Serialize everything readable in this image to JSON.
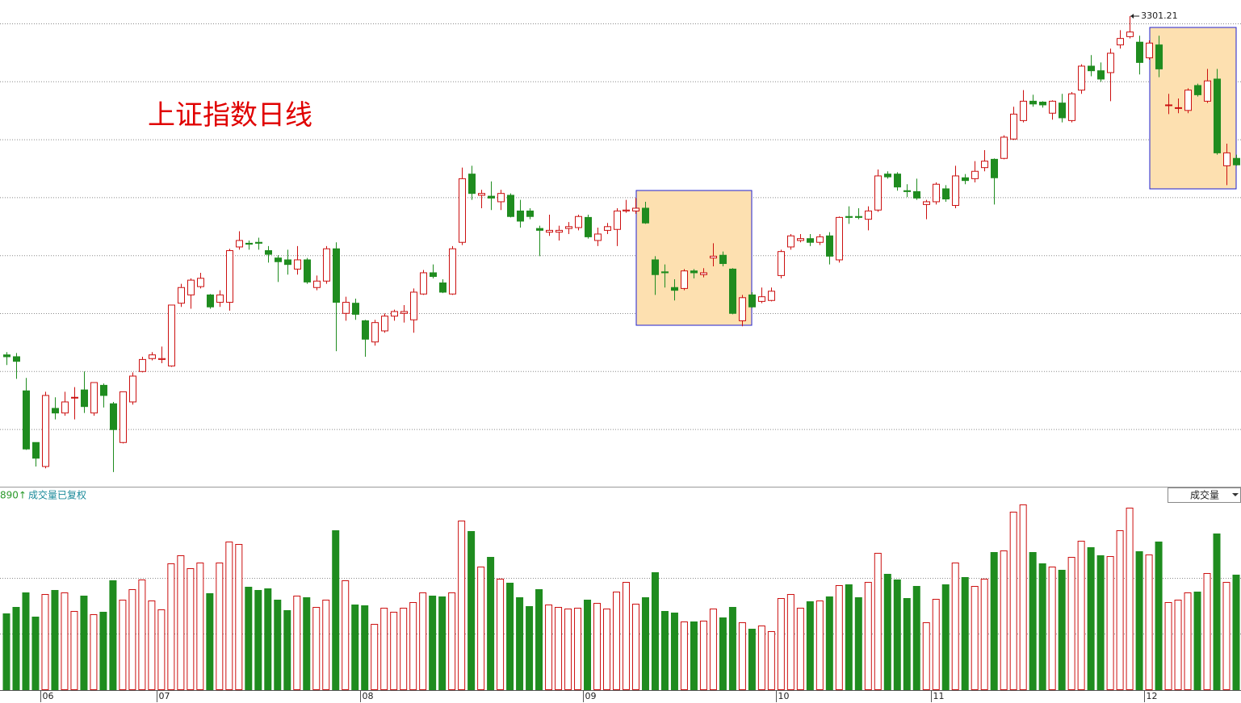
{
  "chart_data": {
    "type": "candlestick",
    "title": "上证指数日线",
    "categories": [
      null,
      null,
      null,
      null,
      "06",
      null,
      null,
      null,
      null,
      null,
      null,
      null,
      null,
      null,
      null,
      null,
      "07",
      null,
      null,
      null,
      null,
      null,
      null,
      null,
      null,
      null,
      null,
      null,
      null,
      null,
      null,
      null,
      null,
      null,
      null,
      null,
      null,
      "08",
      null,
      null,
      null,
      null,
      null,
      null,
      null,
      null,
      null,
      null,
      null,
      null,
      null,
      null,
      null,
      null,
      null,
      null,
      null,
      null,
      null,
      null,
      "09",
      null,
      null,
      null,
      null,
      null,
      null,
      null,
      null,
      null,
      null,
      null,
      null,
      null,
      null,
      null,
      null,
      null,
      null,
      null,
      "10",
      null,
      null,
      null,
      null,
      null,
      null,
      null,
      null,
      null,
      null,
      null,
      null,
      null,
      null,
      null,
      "11",
      null,
      null,
      null,
      null,
      null,
      null,
      null,
      null,
      null,
      null,
      null,
      null,
      null,
      null,
      null,
      null,
      null,
      null,
      null,
      null,
      null,
      "12",
      null,
      null,
      null,
      null,
      null,
      null,
      null,
      null,
      null
    ],
    "open": [
      2934,
      2932,
      2895,
      2839,
      2813,
      2876,
      2871,
      2888,
      2896,
      2871,
      2901,
      2881,
      2839,
      2883,
      2916,
      2930,
      2929,
      2922,
      2990,
      2999,
      3008,
      2999,
      2991,
      2991,
      3051,
      3055,
      3056,
      3047,
      3039,
      3037,
      3027,
      3037,
      3007,
      3014,
      3049,
      2979,
      2990,
      2971,
      2948,
      2960,
      2976,
      2979,
      2972,
      3000,
      3023,
      3012,
      3000,
      3056,
      3130,
      3107,
      3106,
      3100,
      3107,
      3090,
      3090,
      3071,
      3067,
      3067,
      3071,
      3072,
      3083,
      3058,
      3069,
      3070,
      3090,
      3090,
      3093,
      3037,
      3024,
      3007,
      3006,
      3025,
      3021,
      3039,
      3042,
      3027,
      2971,
      2999,
      2992,
      2993,
      3020,
      3051,
      3058,
      3060,
      3056,
      3063,
      3037,
      3084,
      3084,
      3081,
      3091,
      3130,
      3130,
      3112,
      3111,
      3097,
      3100,
      3114,
      3096,
      3126,
      3125,
      3137,
      3146,
      3147,
      3168,
      3188,
      3209,
      3208,
      3196,
      3207,
      3188,
      3221,
      3247,
      3242,
      3240,
      3270,
      3279,
      3273,
      3256,
      3270,
      3205,
      3202,
      3199,
      3226,
      3209,
      3233,
      3139,
      3147
    ],
    "high": [
      2937,
      2936,
      2909,
      2839,
      2894,
      2888,
      2894,
      2899,
      2916,
      2904,
      2903,
      2883,
      2894,
      2915,
      2932,
      2937,
      2943,
      2988,
      3011,
      3017,
      3023,
      3000,
      3004,
      3049,
      3068,
      3058,
      3061,
      3052,
      3042,
      3048,
      3052,
      3039,
      3020,
      3052,
      3056,
      2997,
      2995,
      2972,
      2972,
      2979,
      2983,
      2988,
      3006,
      3026,
      3032,
      3016,
      3052,
      3137,
      3139,
      3113,
      3122,
      3113,
      3109,
      3102,
      3093,
      3074,
      3086,
      3074,
      3078,
      3086,
      3086,
      3072,
      3077,
      3093,
      3102,
      3104,
      3100,
      3041,
      3032,
      3016,
      3027,
      3027,
      3028,
      3055,
      3046,
      3028,
      2999,
      3002,
      3007,
      3007,
      3048,
      3065,
      3065,
      3065,
      3065,
      3067,
      3084,
      3095,
      3093,
      3095,
      3135,
      3133,
      3132,
      3119,
      3125,
      3102,
      3121,
      3118,
      3139,
      3130,
      3144,
      3156,
      3147,
      3172,
      3203,
      3221,
      3216,
      3209,
      3210,
      3217,
      3219,
      3249,
      3259,
      3251,
      3266,
      3286,
      3301.21,
      3280,
      3275,
      3280,
      3217,
      3212,
      3223,
      3228,
      3244,
      3244,
      3163,
      3151
    ],
    "low": [
      2923,
      2908,
      2831,
      2813,
      2811,
      2864,
      2868,
      2864,
      2871,
      2868,
      2877,
      2807,
      2838,
      2880,
      2915,
      2928,
      2925,
      2921,
      2986,
      2984,
      3006,
      2984,
      2986,
      2982,
      3048,
      3048,
      3048,
      3034,
      3013,
      3021,
      3021,
      3011,
      3004,
      3011,
      2938,
      2971,
      2972,
      2932,
      2944,
      2958,
      2971,
      2969,
      2958,
      2999,
      3017,
      3001,
      2999,
      3053,
      3102,
      3093,
      3091,
      3091,
      3083,
      3072,
      3081,
      3041,
      3063,
      3058,
      3065,
      3069,
      3060,
      3052,
      3065,
      3052,
      3088,
      3087,
      3076,
      2999,
      3007,
      2993,
      3004,
      3017,
      3018,
      3030,
      3030,
      2978,
      2965,
      2985,
      2990,
      2992,
      3017,
      3048,
      3056,
      3052,
      3053,
      3032,
      3034,
      3076,
      3081,
      3069,
      3089,
      3125,
      3112,
      3105,
      3102,
      3081,
      3097,
      3100,
      3093,
      3119,
      3121,
      3133,
      3097,
      3146,
      3167,
      3186,
      3203,
      3202,
      3189,
      3186,
      3186,
      3217,
      3236,
      3230,
      3209,
      3266,
      3277,
      3238,
      3254,
      3235,
      3195,
      3196,
      3196,
      3214,
      3207,
      3151,
      3118,
      3139
    ],
    "close": [
      2932,
      2927,
      2832,
      2822,
      2890,
      2871,
      2883,
      2888,
      2878,
      2904,
      2890,
      2853,
      2894,
      2911,
      2929,
      2934,
      2930,
      2988,
      3007,
      3015,
      3017,
      2986,
      2999,
      3047,
      3058,
      3054,
      3055,
      3043,
      3035,
      3032,
      3037,
      3013,
      3014,
      3049,
      2991,
      2991,
      2978,
      2951,
      2969,
      2976,
      2981,
      2981,
      3002,
      3023,
      3019,
      3002,
      3049,
      3125,
      3109,
      3109,
      3104,
      3109,
      3084,
      3079,
      3084,
      3069,
      3069,
      3069,
      3073,
      3084,
      3062,
      3065,
      3073,
      3090,
      3091,
      3093,
      3077,
      3021,
      3023,
      3004,
      3025,
      3023,
      3023,
      3041,
      3033,
      2979,
      2996,
      2986,
      2997,
      3003,
      3046,
      3063,
      3060,
      3056,
      3062,
      3041,
      3083,
      3083,
      3083,
      3090,
      3128,
      3127,
      3116,
      3111,
      3104,
      3100,
      3119,
      3103,
      3128,
      3123,
      3133,
      3144,
      3126,
      3170,
      3195,
      3209,
      3206,
      3205,
      3209,
      3191,
      3217,
      3247,
      3242,
      3233,
      3261,
      3277,
      3284,
      3251,
      3272,
      3244,
      3205,
      3202,
      3221,
      3216,
      3231,
      3153,
      3153,
      3140
    ],
    "ylim": [
      2791.1,
      3318.7
    ],
    "up_color": "#cc1010",
    "down_color": "#1f8c1f",
    "volume": {
      "indicator": "890↑",
      "label": "成交量已复权",
      "selector": "成交量",
      "values": [
        95,
        103,
        121,
        91,
        119,
        124,
        121,
        98,
        117,
        94,
        97,
        136,
        112,
        125,
        137,
        111,
        100,
        157,
        167,
        151,
        158,
        120,
        158,
        184,
        181,
        128,
        124,
        126,
        112,
        99,
        117,
        115,
        103,
        112,
        198,
        136,
        106,
        105,
        82,
        102,
        97,
        102,
        109,
        121,
        117,
        116,
        121,
        210,
        197,
        153,
        165,
        138,
        133,
        115,
        104,
        125,
        106,
        103,
        101,
        102,
        112,
        108,
        101,
        122,
        134,
        107,
        115,
        146,
        98,
        96,
        85,
        85,
        86,
        101,
        90,
        103,
        84,
        76,
        80,
        73,
        114,
        119,
        102,
        110,
        111,
        116,
        130,
        131,
        115,
        134,
        170,
        144,
        137,
        114,
        129,
        84,
        113,
        131,
        158,
        140,
        129,
        138,
        171,
        173,
        221,
        230,
        171,
        157,
        153,
        149,
        165,
        185,
        177,
        167,
        166,
        198,
        226,
        172,
        168,
        184,
        109,
        112,
        121,
        122,
        145,
        194,
        134,
        143
      ],
      "ylim": [
        0,
        230
      ]
    }
  }
}
